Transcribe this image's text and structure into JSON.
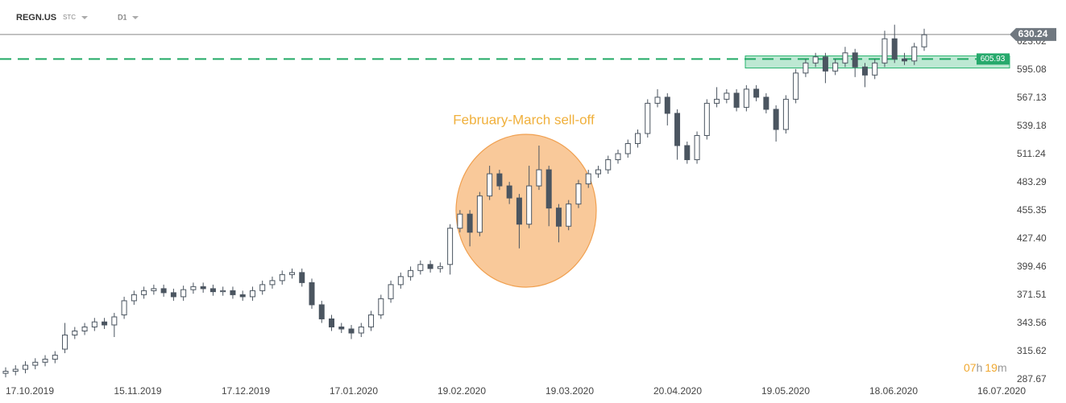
{
  "chart_data": {
    "type": "candlestick",
    "title": "REGN.US",
    "labels": [
      "STC",
      "D1"
    ],
    "annotation": "February-March sell-off",
    "timer": {
      "hours": "07",
      "h": "h",
      "minutes": "19",
      "m": "m"
    },
    "last_price": 630.24,
    "level": 605.93,
    "zone": [
      597,
      609
    ],
    "ylim": [
      284.5,
      664.5
    ],
    "yticks": [
      287.67,
      315.62,
      343.56,
      371.51,
      399.46,
      {
        "value": 427.4,
        "label": "427.40"
      },
      455.35,
      483.29,
      511.24,
      539.18,
      567.13,
      595.08,
      623.02
    ],
    "x_labels": [
      "17.10.2019",
      "15.11.2019",
      "17.12.2019",
      "17.01.2020",
      "19.02.2020",
      "19.03.2020",
      "20.04.2020",
      "19.05.2020",
      "18.06.2020",
      "16.07.2020"
    ],
    "up_color": "#ffffff",
    "down_color": "#4b5560",
    "open": [
      294,
      296,
      298,
      302,
      305,
      308,
      318,
      332,
      336,
      340,
      345,
      342,
      352,
      366,
      372,
      376,
      378,
      374,
      370,
      377,
      380,
      378,
      375,
      376,
      372,
      370,
      376,
      382,
      386,
      392,
      394,
      384,
      362,
      348,
      340,
      338,
      334,
      340,
      352,
      368,
      382,
      390,
      396,
      402,
      398,
      402,
      438,
      452,
      434,
      470,
      492,
      480,
      468,
      442,
      480,
      496,
      458,
      440,
      462,
      482,
      492,
      496,
      506,
      512,
      522,
      532,
      562,
      568,
      552,
      520,
      506,
      530,
      562,
      566,
      572,
      558,
      576,
      568,
      556,
      536,
      566,
      592,
      602,
      608,
      594,
      602,
      612,
      598,
      590,
      602,
      626,
      606,
      604,
      618
    ],
    "high": [
      300,
      302,
      306,
      309,
      312,
      316,
      344,
      340,
      344,
      349,
      349,
      354,
      370,
      376,
      380,
      382,
      382,
      378,
      381,
      384,
      384,
      382,
      380,
      380,
      376,
      380,
      386,
      390,
      396,
      398,
      398,
      388,
      366,
      352,
      344,
      342,
      344,
      356,
      372,
      386,
      394,
      400,
      406,
      406,
      404,
      442,
      456,
      456,
      474,
      500,
      496,
      484,
      472,
      500,
      520,
      500,
      462,
      466,
      486,
      496,
      500,
      510,
      516,
      526,
      536,
      566,
      576,
      572,
      556,
      524,
      534,
      566,
      578,
      576,
      576,
      580,
      580,
      572,
      560,
      570,
      596,
      606,
      612,
      612,
      606,
      618,
      616,
      602,
      606,
      634,
      640,
      612,
      622,
      636
    ],
    "low": [
      290,
      292,
      294,
      298,
      301,
      304,
      314,
      328,
      332,
      336,
      338,
      330,
      348,
      362,
      368,
      372,
      370,
      366,
      366,
      373,
      374,
      371,
      371,
      368,
      366,
      366,
      372,
      378,
      382,
      388,
      380,
      358,
      344,
      336,
      334,
      328,
      330,
      336,
      348,
      364,
      378,
      386,
      392,
      394,
      394,
      392,
      434,
      420,
      430,
      466,
      476,
      462,
      418,
      438,
      476,
      440,
      424,
      436,
      458,
      478,
      488,
      492,
      502,
      508,
      518,
      528,
      558,
      540,
      506,
      502,
      502,
      526,
      558,
      562,
      554,
      554,
      564,
      552,
      524,
      532,
      562,
      588,
      598,
      582,
      590,
      598,
      588,
      578,
      586,
      598,
      602,
      600,
      600,
      614
    ],
    "close": [
      296,
      298,
      302,
      305,
      308,
      312,
      332,
      336,
      340,
      345,
      342,
      350,
      366,
      372,
      376,
      378,
      374,
      370,
      377,
      380,
      378,
      375,
      376,
      372,
      370,
      376,
      382,
      386,
      392,
      394,
      384,
      362,
      348,
      340,
      338,
      334,
      340,
      352,
      368,
      382,
      390,
      396,
      402,
      398,
      400,
      438,
      452,
      434,
      470,
      492,
      480,
      468,
      442,
      480,
      496,
      458,
      440,
      462,
      482,
      492,
      496,
      506,
      512,
      522,
      532,
      562,
      568,
      552,
      520,
      506,
      530,
      562,
      566,
      572,
      558,
      576,
      568,
      556,
      536,
      566,
      592,
      602,
      608,
      594,
      602,
      612,
      598,
      590,
      602,
      626,
      606,
      604,
      618,
      630
    ]
  }
}
